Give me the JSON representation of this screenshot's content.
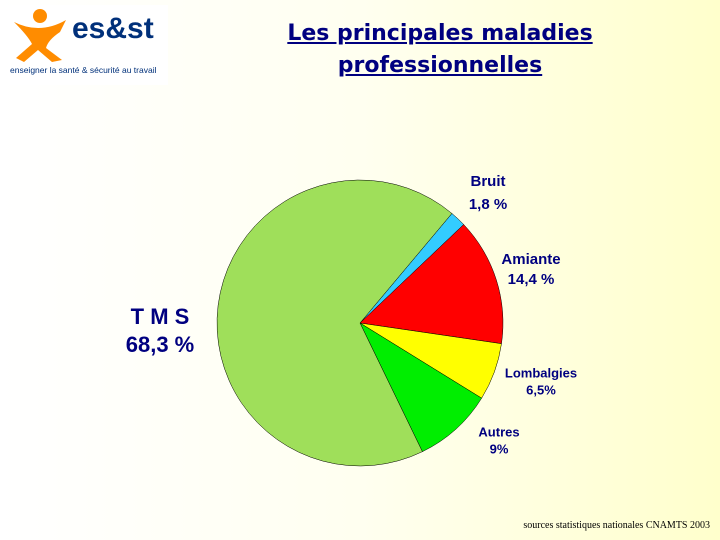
{
  "logo": {
    "name": "es&st",
    "tagline": "enseigner la santé & sécurité au travail"
  },
  "chart_data": {
    "type": "pie",
    "title": "Les principales maladies professionnelles",
    "categories": [
      "Bruit",
      "Amiante",
      "Lombalgies",
      "Autres",
      "T M S"
    ],
    "values": [
      1.8,
      14.4,
      6.5,
      9,
      68.3
    ],
    "value_labels": [
      "1,8 %",
      "14,4 %",
      "6,5%",
      "9%",
      "68,3 %"
    ],
    "colors": [
      "#33ccff",
      "#ff0000",
      "#ffff00",
      "#00ee00",
      "#9fdf5a"
    ]
  },
  "source": "sources statistiques nationales CNAMTS 2003"
}
